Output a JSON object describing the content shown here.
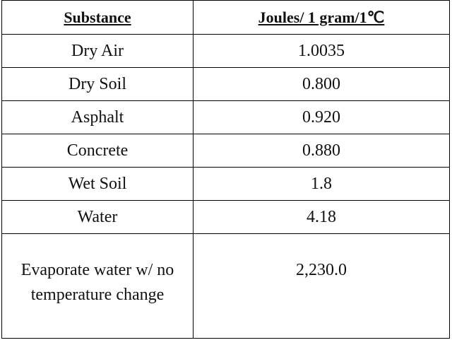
{
  "table": {
    "header": [
      "Substance",
      "Joules/ 1 gram/1℃"
    ],
    "rows": [
      [
        "Dry Air",
        "1.0035"
      ],
      [
        "Dry Soil",
        "0.800"
      ],
      [
        "Asphalt",
        "0.920"
      ],
      [
        "Concrete",
        "0.880"
      ],
      [
        "Wet Soil",
        "1.8"
      ],
      [
        "Water",
        "4.18"
      ],
      [
        "Evaporate water w/ no temperature change",
        "2,230.0"
      ]
    ]
  }
}
